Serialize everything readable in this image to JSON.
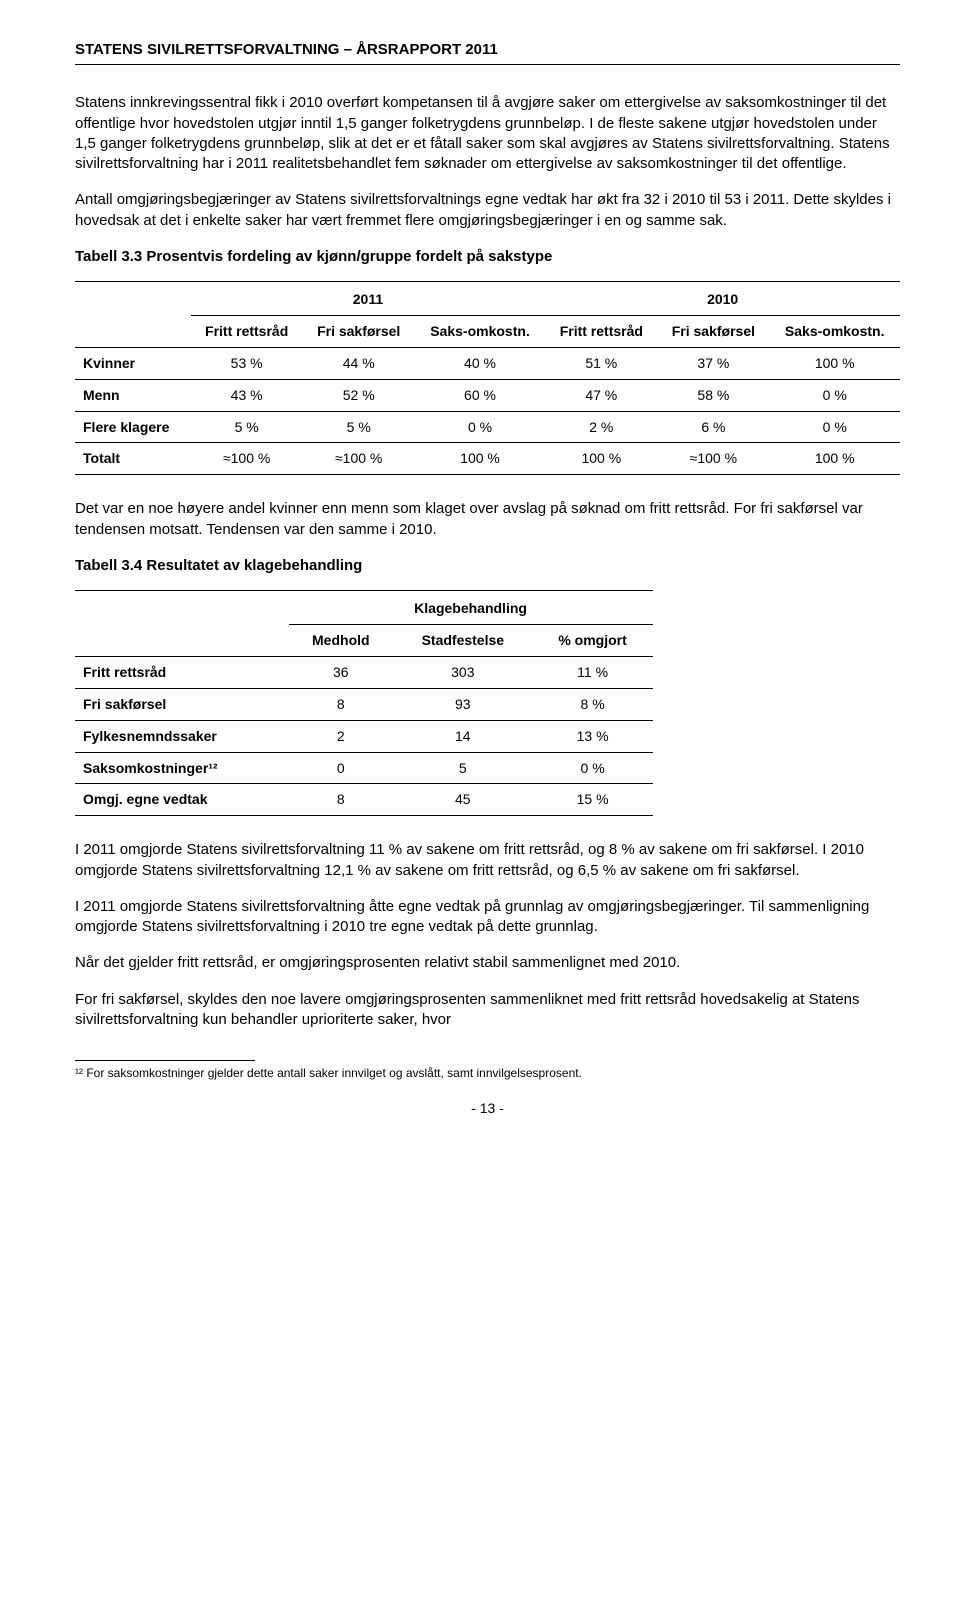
{
  "header": "STATENS SIVILRETTSFORVALTNING – ÅRSRAPPORT 2011",
  "para1": "Statens innkrevingssentral fikk i 2010 overført kompetansen til å avgjøre saker om ettergivelse av saksomkostninger til det offentlige hvor hovedstolen utgjør inntil 1,5 ganger folketrygdens grunnbeløp. I de fleste sakene utgjør hovedstolen under 1,5 ganger folketrygdens grunnbeløp, slik at det er et fåtall saker som skal avgjøres av Statens sivilrettsforvaltning. Statens sivilrettsforvaltning har i 2011 realitetsbehandlet fem søknader om ettergivelse av saksomkostninger til det offentlige.",
  "para2": "Antall omgjøringsbegjæringer av Statens sivilrettsforvaltnings egne vedtak har økt fra 32 i 2010 til 53 i 2011. Dette skyldes i hovedsak at det i enkelte saker har vært fremmet flere omgjøringsbegjæringer i en og samme sak.",
  "table3_3_title": "Tabell 3.3 Prosentvis fordeling av kjønn/gruppe fordelt på sakstype",
  "t33": {
    "year1": "2011",
    "year2": "2010",
    "cols": [
      "",
      "Fritt rettsråd",
      "Fri sakførsel",
      "Saks-omkostn.",
      "Fritt rettsråd",
      "Fri sakførsel",
      "Saks-omkostn."
    ],
    "rows": [
      [
        "Kvinner",
        "53 %",
        "44 %",
        "40 %",
        "51 %",
        "37 %",
        "100 %"
      ],
      [
        "Menn",
        "43 %",
        "52 %",
        "60 %",
        "47 %",
        "58 %",
        "0 %"
      ],
      [
        "Flere klagere",
        "5 %",
        "5 %",
        "0 %",
        "2 %",
        "6 %",
        "0 %"
      ],
      [
        "Totalt",
        "≈100 %",
        "≈100 %",
        "100 %",
        "100 %",
        "≈100 %",
        "100 %"
      ]
    ]
  },
  "para3": "Det var en noe høyere andel kvinner enn menn som klaget over avslag på søknad om fritt rettsråd. For fri sakførsel var tendensen motsatt. Tendensen var den samme i 2010.",
  "table3_4_title": "Tabell 3.4 Resultatet av klagebehandling",
  "t34": {
    "group": "Klagebehandling",
    "cols": [
      "",
      "Medhold",
      "Stadfestelse",
      "% omgjort"
    ],
    "rows": [
      [
        "Fritt rettsråd",
        "36",
        "303",
        "11 %"
      ],
      [
        "Fri sakførsel",
        "8",
        "93",
        "8 %"
      ],
      [
        "Fylkesnemndssaker",
        "2",
        "14",
        "13 %"
      ],
      [
        "Saksomkostninger¹²",
        "0",
        "5",
        "0 %"
      ],
      [
        "Omgj. egne vedtak",
        "8",
        "45",
        "15 %"
      ]
    ]
  },
  "para4": "I 2011 omgjorde Statens sivilrettsforvaltning 11 % av sakene om fritt rettsråd, og 8 % av sakene om fri sakførsel. I 2010 omgjorde Statens sivilrettsforvaltning 12,1 % av sakene om fritt rettsråd, og 6,5 % av sakene om fri sakførsel.",
  "para5": "I 2011 omgjorde Statens sivilrettsforvaltning åtte egne vedtak på grunnlag av omgjøringsbegjæringer. Til sammenligning omgjorde Statens sivilrettsforvaltning i 2010 tre egne vedtak på dette grunnlag.",
  "para6": "Når det gjelder fritt rettsråd, er omgjøringsprosenten relativt stabil sammenlignet med 2010.",
  "para7": "For fri sakførsel, skyldes den noe lavere omgjøringsprosenten sammenliknet med fritt rettsråd hovedsakelig at Statens sivilrettsforvaltning kun behandler uprioriterte saker, hvor",
  "footnote": "¹² For saksomkostninger gjelder dette antall saker innvilget og avslått, samt innvilgelsesprosent.",
  "pagenum": "- 13 -"
}
